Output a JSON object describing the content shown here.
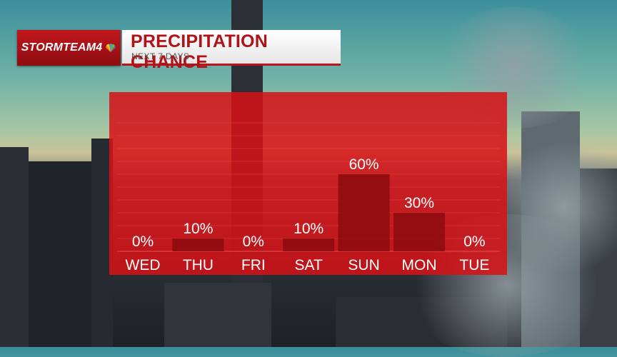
{
  "branding": {
    "logo_text": "STORMTEAM4",
    "logo_icon": "peacock-icon",
    "brand_color": "#b9141a"
  },
  "header": {
    "title": "PRECIPITATION CHANCE",
    "subtitle": "NEXT 7 DAYS"
  },
  "chart_data": {
    "type": "bar",
    "title": "PRECIPITATION CHANCE",
    "subtitle": "NEXT 7 DAYS",
    "categories": [
      "WED",
      "THU",
      "FRI",
      "SAT",
      "SUN",
      "MON",
      "TUE"
    ],
    "values": [
      0,
      10,
      0,
      10,
      60,
      30,
      0
    ],
    "value_labels": [
      "0%",
      "10%",
      "0%",
      "10%",
      "60%",
      "30%",
      "0%"
    ],
    "unit": "%",
    "ylim": [
      0,
      100
    ],
    "grid": true,
    "legend": "none",
    "colors": {
      "panel": "#d61216",
      "bar": "#8e0c10",
      "gridline": "#e85a5d",
      "text": "#ffffff"
    }
  }
}
